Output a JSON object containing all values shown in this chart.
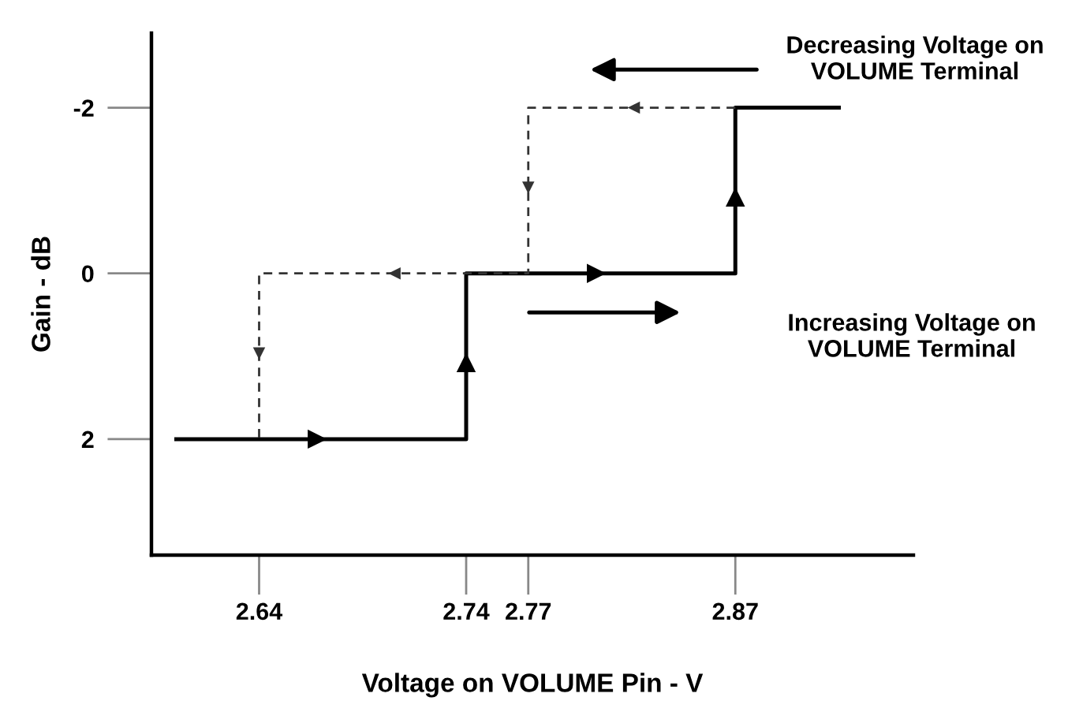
{
  "chart_data": {
    "type": "step",
    "xlabel": "Voltage on VOLUME Pin - V",
    "ylabel": "Gain - dB",
    "annotations": [
      "Decreasing Voltage on VOLUME Terminal",
      "Increasing Voltage on VOLUME Terminal"
    ],
    "series": [
      {
        "color": "#000000",
        "line_style": "solid",
        "x": [
          2.6,
          2.74,
          2.87,
          2.92
        ],
        "values": [
          2,
          0,
          -2,
          -2
        ]
      },
      {
        "color": "#333333",
        "line_style": "dashed",
        "x": [
          2.87,
          2.77,
          2.64
        ],
        "values": [
          -2,
          0,
          2
        ]
      }
    ],
    "xlim": [
      2.588,
      2.956
    ],
    "ylim": [
      3.4,
      -2.9
    ],
    "xticks": [
      2.64,
      2.74,
      2.77,
      2.87
    ],
    "yticks": [
      -2,
      0,
      2
    ],
    "grid": false,
    "legend": false,
    "marker": "none"
  }
}
